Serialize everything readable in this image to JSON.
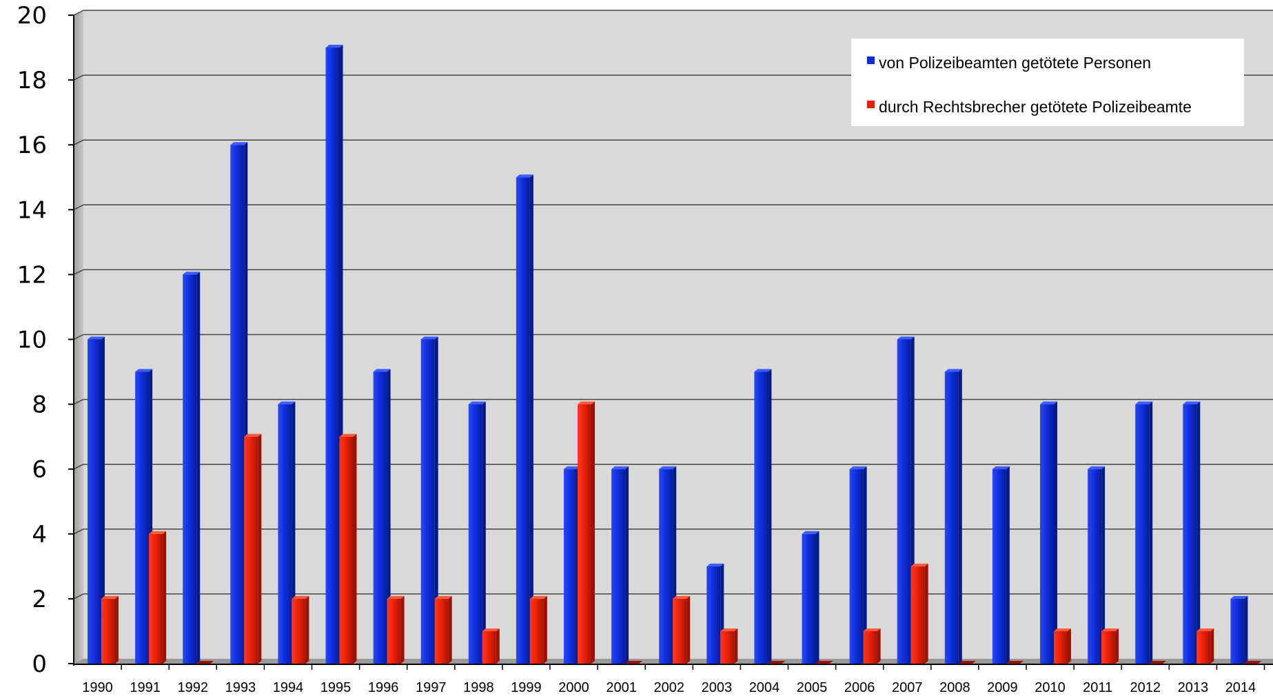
{
  "chart_data": {
    "type": "bar",
    "categories": [
      "1990",
      "1991",
      "1992",
      "1993",
      "1994",
      "1995",
      "1996",
      "1997",
      "1998",
      "1999",
      "2000",
      "2001",
      "2002",
      "2003",
      "2004",
      "2005",
      "2006",
      "2007",
      "2008",
      "2009",
      "2010",
      "2011",
      "2012",
      "2013",
      "2014"
    ],
    "series": [
      {
        "name": "von Polizeibeamten getötete Personen",
        "color": "#0b2bd6",
        "values": [
          10,
          9,
          12,
          16,
          8,
          19,
          9,
          10,
          8,
          15,
          6,
          6,
          6,
          3,
          9,
          4,
          6,
          10,
          9,
          6,
          8,
          6,
          8,
          8,
          2
        ]
      },
      {
        "name": "durch Rechtsbrecher getötete Polizeibeamte",
        "color": "#e8200a",
        "values": [
          2,
          4,
          0,
          7,
          2,
          7,
          2,
          2,
          1,
          2,
          8,
          0,
          2,
          1,
          0,
          0,
          1,
          3,
          0,
          0,
          1,
          1,
          0,
          1,
          0
        ]
      }
    ],
    "ylim": [
      0,
      20
    ],
    "yticks": [
      0,
      2,
      4,
      6,
      8,
      10,
      12,
      14,
      16,
      18,
      20
    ],
    "grid": true,
    "legend_position": "top-right",
    "background": "#d9d9d9"
  }
}
